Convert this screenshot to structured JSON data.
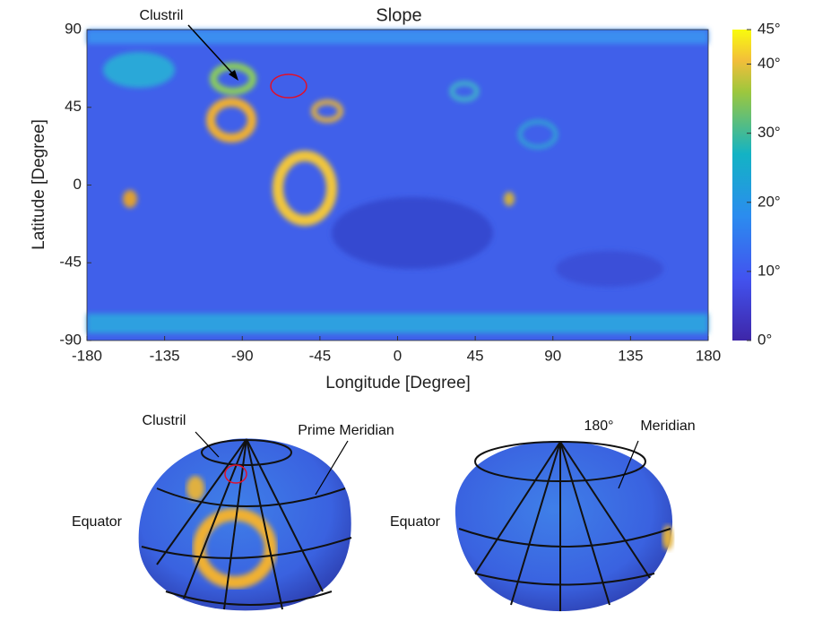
{
  "chart_data": {
    "type": "heatmap",
    "title": "Slope",
    "x_label": "Longitude [Degree]",
    "y_label": "Latitude [Degree]",
    "xlim": [
      -180,
      180
    ],
    "xticks": [
      -180,
      -135,
      -90,
      -45,
      0,
      45,
      90,
      135,
      180
    ],
    "ylim": [
      -90,
      90
    ],
    "yticks": [
      -90,
      -45,
      0,
      45,
      90
    ],
    "colorbar": {
      "lim": [
        0,
        45
      ],
      "ticks": [
        {
          "value": 0,
          "label": "0°"
        },
        {
          "value": 10,
          "label": "10°"
        },
        {
          "value": 20,
          "label": "20°"
        },
        {
          "value": 30,
          "label": "30°"
        },
        {
          "value": 40,
          "label": "40°"
        },
        {
          "value": 45,
          "label": "45°"
        }
      ]
    },
    "annotation": "Clustril"
  },
  "renderings": [
    {
      "clustril": "Clustril",
      "meridian": "Prime Meridian",
      "equator": "Equator"
    },
    {
      "longitude": "180°",
      "meridian": "Meridian",
      "equator": "Equator"
    }
  ]
}
